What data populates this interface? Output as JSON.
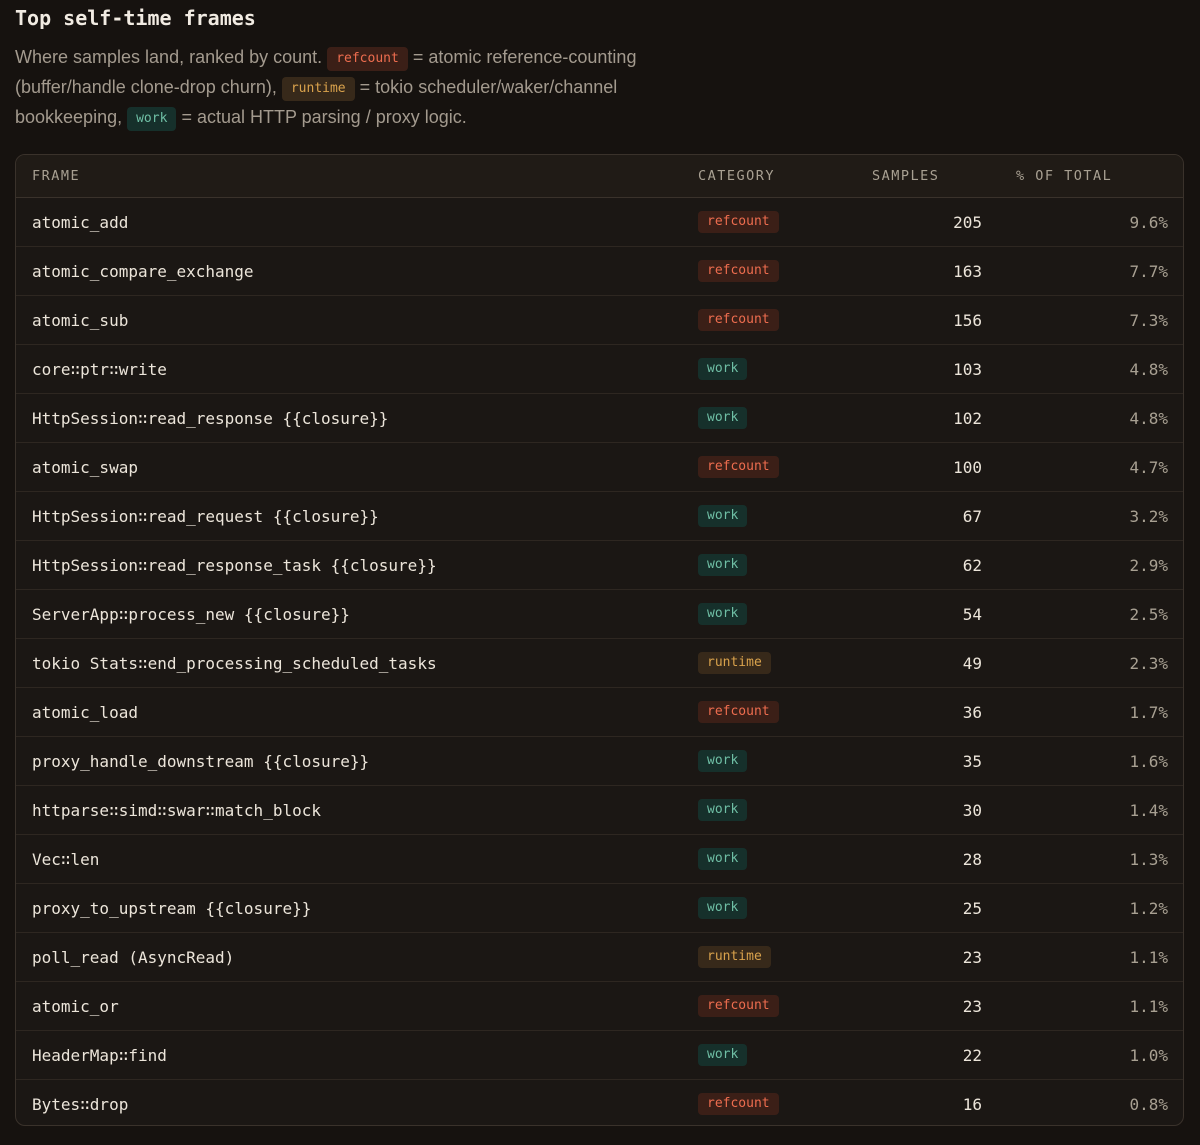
{
  "title": "Top self-time frames",
  "description": {
    "part1": "Where samples land, ranked by count.",
    "chip_refcount": "refcount",
    "part2": "= atomic reference-counting (buffer/handle clone-drop churn),",
    "chip_runtime": "runtime",
    "part3": "= tokio scheduler/waker/channel bookkeeping,",
    "chip_work": "work",
    "part4": "= actual HTTP parsing / proxy logic."
  },
  "colors": {
    "refcount_bg": "#3b1f17",
    "refcount_fg": "#ee6d4f",
    "runtime_bg": "#37291a",
    "runtime_fg": "#d9a24c",
    "work_bg": "#16302b",
    "work_fg": "#6fbfa5"
  },
  "table": {
    "headers": {
      "frame": "FRAME",
      "category": "CATEGORY",
      "samples": "SAMPLES",
      "pct": "% OF TOTAL"
    },
    "rows": [
      {
        "frame": "atomic_add",
        "category": "refcount",
        "samples": "205",
        "pct": "9.6%"
      },
      {
        "frame": "atomic_compare_exchange",
        "category": "refcount",
        "samples": "163",
        "pct": "7.7%"
      },
      {
        "frame": "atomic_sub",
        "category": "refcount",
        "samples": "156",
        "pct": "7.3%"
      },
      {
        "frame": "core∷ptr∷write",
        "category": "work",
        "samples": "103",
        "pct": "4.8%"
      },
      {
        "frame": "HttpSession∷read_response {{closure}}",
        "category": "work",
        "samples": "102",
        "pct": "4.8%"
      },
      {
        "frame": "atomic_swap",
        "category": "refcount",
        "samples": "100",
        "pct": "4.7%"
      },
      {
        "frame": "HttpSession∷read_request {{closure}}",
        "category": "work",
        "samples": "67",
        "pct": "3.2%"
      },
      {
        "frame": "HttpSession∷read_response_task {{closure}}",
        "category": "work",
        "samples": "62",
        "pct": "2.9%"
      },
      {
        "frame": "ServerApp∷process_new {{closure}}",
        "category": "work",
        "samples": "54",
        "pct": "2.5%"
      },
      {
        "frame": "tokio Stats∷end_processing_scheduled_tasks",
        "category": "runtime",
        "samples": "49",
        "pct": "2.3%"
      },
      {
        "frame": "atomic_load",
        "category": "refcount",
        "samples": "36",
        "pct": "1.7%"
      },
      {
        "frame": "proxy_handle_downstream {{closure}}",
        "category": "work",
        "samples": "35",
        "pct": "1.6%"
      },
      {
        "frame": "httparse∷simd∷swar∷match_block",
        "category": "work",
        "samples": "30",
        "pct": "1.4%"
      },
      {
        "frame": "Vec∷len",
        "category": "work",
        "samples": "28",
        "pct": "1.3%"
      },
      {
        "frame": "proxy_to_upstream {{closure}}",
        "category": "work",
        "samples": "25",
        "pct": "1.2%"
      },
      {
        "frame": "poll_read (AsyncRead)",
        "category": "runtime",
        "samples": "23",
        "pct": "1.1%"
      },
      {
        "frame": "atomic_or",
        "category": "refcount",
        "samples": "23",
        "pct": "1.1%"
      },
      {
        "frame": "HeaderMap∷find",
        "category": "work",
        "samples": "22",
        "pct": "1.0%"
      },
      {
        "frame": "Bytes∷drop",
        "category": "refcount",
        "samples": "16",
        "pct": "0.8%"
      }
    ]
  }
}
